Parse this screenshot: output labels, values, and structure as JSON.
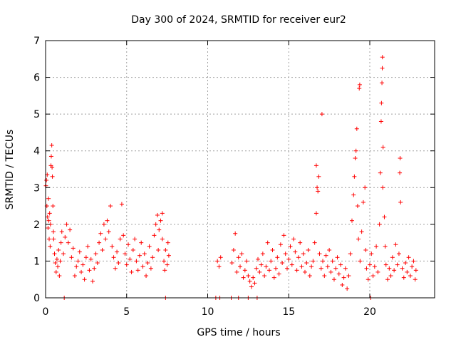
{
  "chart_data": {
    "type": "scatter",
    "title": "Day 300 of 2024, SRMTID for receiver eur2",
    "xlabel": "GPS time / hours",
    "ylabel": "SRMTID / TECUs",
    "xlim": [
      0,
      24
    ],
    "ylim": [
      0,
      7
    ],
    "xticks": [
      0,
      5,
      10,
      15,
      20
    ],
    "yticks": [
      0,
      1,
      2,
      3,
      4,
      5,
      6,
      7
    ],
    "grid": true,
    "marker": "+",
    "color": "#ff0000",
    "points": [
      [
        0.02,
        3.05
      ],
      [
        0.05,
        3.2
      ],
      [
        0.08,
        2.5
      ],
      [
        0.1,
        3.35
      ],
      [
        0.12,
        2.2
      ],
      [
        0.15,
        1.9
      ],
      [
        0.18,
        2.7
      ],
      [
        0.2,
        2.1
      ],
      [
        0.22,
        1.6
      ],
      [
        0.25,
        2.3
      ],
      [
        0.28,
        1.4
      ],
      [
        0.3,
        2.0
      ],
      [
        0.33,
        3.6
      ],
      [
        0.35,
        3.85
      ],
      [
        0.38,
        4.15
      ],
      [
        0.4,
        3.55
      ],
      [
        0.42,
        3.3
      ],
      [
        0.45,
        2.5
      ],
      [
        0.48,
        1.8
      ],
      [
        0.5,
        1.6
      ],
      [
        0.55,
        1.2
      ],
      [
        0.6,
        0.95
      ],
      [
        0.65,
        0.7
      ],
      [
        0.7,
        1.05
      ],
      [
        0.75,
        0.85
      ],
      [
        0.8,
        1.3
      ],
      [
        0.85,
        0.6
      ],
      [
        0.9,
        1.0
      ],
      [
        0.95,
        1.5
      ],
      [
        1.0,
        1.8
      ],
      [
        1.1,
        1.2
      ],
      [
        1.2,
        1.65
      ],
      [
        1.3,
        2.0
      ],
      [
        1.4,
        1.5
      ],
      [
        1.5,
        1.85
      ],
      [
        1.6,
        1.1
      ],
      [
        1.7,
        1.35
      ],
      [
        1.8,
        0.6
      ],
      [
        1.9,
        0.85
      ],
      [
        2.0,
        1.0
      ],
      [
        2.1,
        1.25
      ],
      [
        2.2,
        0.7
      ],
      [
        2.3,
        0.9
      ],
      [
        2.4,
        0.5
      ],
      [
        2.5,
        1.1
      ],
      [
        2.6,
        1.4
      ],
      [
        2.7,
        0.75
      ],
      [
        2.8,
        1.05
      ],
      [
        2.9,
        0.45
      ],
      [
        3.0,
        0.8
      ],
      [
        3.1,
        1.2
      ],
      [
        3.2,
        0.95
      ],
      [
        3.3,
        1.5
      ],
      [
        3.4,
        1.75
      ],
      [
        3.5,
        1.3
      ],
      [
        3.6,
        2.0
      ],
      [
        3.7,
        1.6
      ],
      [
        3.8,
        2.1
      ],
      [
        3.9,
        1.8
      ],
      [
        4.0,
        2.5
      ],
      [
        4.1,
        1.4
      ],
      [
        4.2,
        1.1
      ],
      [
        4.3,
        0.8
      ],
      [
        4.4,
        1.25
      ],
      [
        4.5,
        0.95
      ],
      [
        4.6,
        1.6
      ],
      [
        4.7,
        2.55
      ],
      [
        4.8,
        1.7
      ],
      [
        4.9,
        1.2
      ],
      [
        5.0,
        0.9
      ],
      [
        5.1,
        1.45
      ],
      [
        5.2,
        1.05
      ],
      [
        5.3,
        0.7
      ],
      [
        5.4,
        1.3
      ],
      [
        5.5,
        1.6
      ],
      [
        5.6,
        1.0
      ],
      [
        5.7,
        0.75
      ],
      [
        5.8,
        1.15
      ],
      [
        5.9,
        1.5
      ],
      [
        6.0,
        0.85
      ],
      [
        6.1,
        1.2
      ],
      [
        6.2,
        0.6
      ],
      [
        6.3,
        0.95
      ],
      [
        6.4,
        1.4
      ],
      [
        6.5,
        0.8
      ],
      [
        6.6,
        1.1
      ],
      [
        6.7,
        1.7
      ],
      [
        6.8,
        2.0
      ],
      [
        6.9,
        2.25
      ],
      [
        7.0,
        1.85
      ],
      [
        7.1,
        2.1
      ],
      [
        7.2,
        1.6
      ],
      [
        7.3,
        1.0
      ],
      [
        7.35,
        0.75
      ],
      [
        7.4,
        1.3
      ],
      [
        7.5,
        0.9
      ],
      [
        7.55,
        1.5
      ],
      [
        7.6,
        1.15
      ],
      [
        7.2,
        2.3
      ],
      [
        6.95,
        1.3
      ],
      [
        1.15,
        0.0
      ],
      [
        7.4,
        0.0
      ],
      [
        10.5,
        0.0
      ],
      [
        10.75,
        0.0
      ],
      [
        11.45,
        0.0
      ],
      [
        11.9,
        0.0
      ],
      [
        12.5,
        0.0
      ],
      [
        13.05,
        0.0
      ],
      [
        20.05,
        0.0
      ],
      [
        10.6,
        1.0
      ],
      [
        10.7,
        0.85
      ],
      [
        10.8,
        1.1
      ],
      [
        11.5,
        0.95
      ],
      [
        11.6,
        1.3
      ],
      [
        11.7,
        1.75
      ],
      [
        11.8,
        0.7
      ],
      [
        11.9,
        1.1
      ],
      [
        12.0,
        0.85
      ],
      [
        12.1,
        1.2
      ],
      [
        12.2,
        0.55
      ],
      [
        12.3,
        0.75
      ],
      [
        12.4,
        1.0
      ],
      [
        12.5,
        0.6
      ],
      [
        12.6,
        0.45
      ],
      [
        12.7,
        0.3
      ],
      [
        12.8,
        0.55
      ],
      [
        12.9,
        0.4
      ],
      [
        13.0,
        0.8
      ],
      [
        13.1,
        1.05
      ],
      [
        13.2,
        0.7
      ],
      [
        13.3,
        0.9
      ],
      [
        13.4,
        1.2
      ],
      [
        13.5,
        0.6
      ],
      [
        13.6,
        0.85
      ],
      [
        13.7,
        1.5
      ],
      [
        13.8,
        0.75
      ],
      [
        13.9,
        1.0
      ],
      [
        14.0,
        1.3
      ],
      [
        14.1,
        0.55
      ],
      [
        14.2,
        0.8
      ],
      [
        14.3,
        1.1
      ],
      [
        14.4,
        0.65
      ],
      [
        14.5,
        1.45
      ],
      [
        14.6,
        0.95
      ],
      [
        14.7,
        1.7
      ],
      [
        14.8,
        1.2
      ],
      [
        14.9,
        0.8
      ],
      [
        15.0,
        1.05
      ],
      [
        15.1,
        1.4
      ],
      [
        15.2,
        0.9
      ],
      [
        15.3,
        1.6
      ],
      [
        15.4,
        1.25
      ],
      [
        15.5,
        0.75
      ],
      [
        15.6,
        1.1
      ],
      [
        15.7,
        1.5
      ],
      [
        15.8,
        0.85
      ],
      [
        15.9,
        1.2
      ],
      [
        16.0,
        0.7
      ],
      [
        16.1,
        0.95
      ],
      [
        16.2,
        1.3
      ],
      [
        16.3,
        0.6
      ],
      [
        16.4,
        0.85
      ],
      [
        16.5,
        1.0
      ],
      [
        16.6,
        1.5
      ],
      [
        16.7,
        2.3
      ],
      [
        16.75,
        3.0
      ],
      [
        16.8,
        2.9
      ],
      [
        16.85,
        3.3
      ],
      [
        16.7,
        3.6
      ],
      [
        16.9,
        1.2
      ],
      [
        17.0,
        0.8
      ],
      [
        17.05,
        5.0
      ],
      [
        17.1,
        1.0
      ],
      [
        17.2,
        0.6
      ],
      [
        17.3,
        1.15
      ],
      [
        17.4,
        0.85
      ],
      [
        17.5,
        1.3
      ],
      [
        17.6,
        0.7
      ],
      [
        17.7,
        1.0
      ],
      [
        17.8,
        0.5
      ],
      [
        17.9,
        0.8
      ],
      [
        18.0,
        1.1
      ],
      [
        18.1,
        0.65
      ],
      [
        18.2,
        0.9
      ],
      [
        18.3,
        0.35
      ],
      [
        18.4,
        0.55
      ],
      [
        18.5,
        0.8
      ],
      [
        18.6,
        0.25
      ],
      [
        18.7,
        0.6
      ],
      [
        18.8,
        1.2
      ],
      [
        18.9,
        2.1
      ],
      [
        19.0,
        2.8
      ],
      [
        19.05,
        3.3
      ],
      [
        19.1,
        3.8
      ],
      [
        19.15,
        4.0
      ],
      [
        19.2,
        4.6
      ],
      [
        19.25,
        2.5
      ],
      [
        19.3,
        1.6
      ],
      [
        19.35,
        5.7
      ],
      [
        19.38,
        5.8
      ],
      [
        19.4,
        1.0
      ],
      [
        19.5,
        1.8
      ],
      [
        19.6,
        2.6
      ],
      [
        19.7,
        3.0
      ],
      [
        19.75,
        1.3
      ],
      [
        19.8,
        0.8
      ],
      [
        19.9,
        0.5
      ],
      [
        20.0,
        0.9
      ],
      [
        20.1,
        1.2
      ],
      [
        20.2,
        0.6
      ],
      [
        20.3,
        0.85
      ],
      [
        20.4,
        1.4
      ],
      [
        20.5,
        0.7
      ],
      [
        20.6,
        2.0
      ],
      [
        20.65,
        3.4
      ],
      [
        20.7,
        4.8
      ],
      [
        20.72,
        5.3
      ],
      [
        20.75,
        5.85
      ],
      [
        20.77,
        6.25
      ],
      [
        20.78,
        6.55
      ],
      [
        20.8,
        3.0
      ],
      [
        20.82,
        4.1
      ],
      [
        20.9,
        2.2
      ],
      [
        20.95,
        1.4
      ],
      [
        21.0,
        0.9
      ],
      [
        21.1,
        0.5
      ],
      [
        21.2,
        0.8
      ],
      [
        21.3,
        0.6
      ],
      [
        21.4,
        1.1
      ],
      [
        21.5,
        0.75
      ],
      [
        21.6,
        1.45
      ],
      [
        21.7,
        0.9
      ],
      [
        21.8,
        1.2
      ],
      [
        21.85,
        3.4
      ],
      [
        21.87,
        3.8
      ],
      [
        21.9,
        2.6
      ],
      [
        22.0,
        0.8
      ],
      [
        22.1,
        0.55
      ],
      [
        22.2,
        0.95
      ],
      [
        22.3,
        0.7
      ],
      [
        22.4,
        1.1
      ],
      [
        22.5,
        0.6
      ],
      [
        22.6,
        0.85
      ],
      [
        22.7,
        1.0
      ],
      [
        22.8,
        0.5
      ],
      [
        22.85,
        0.75
      ]
    ]
  }
}
